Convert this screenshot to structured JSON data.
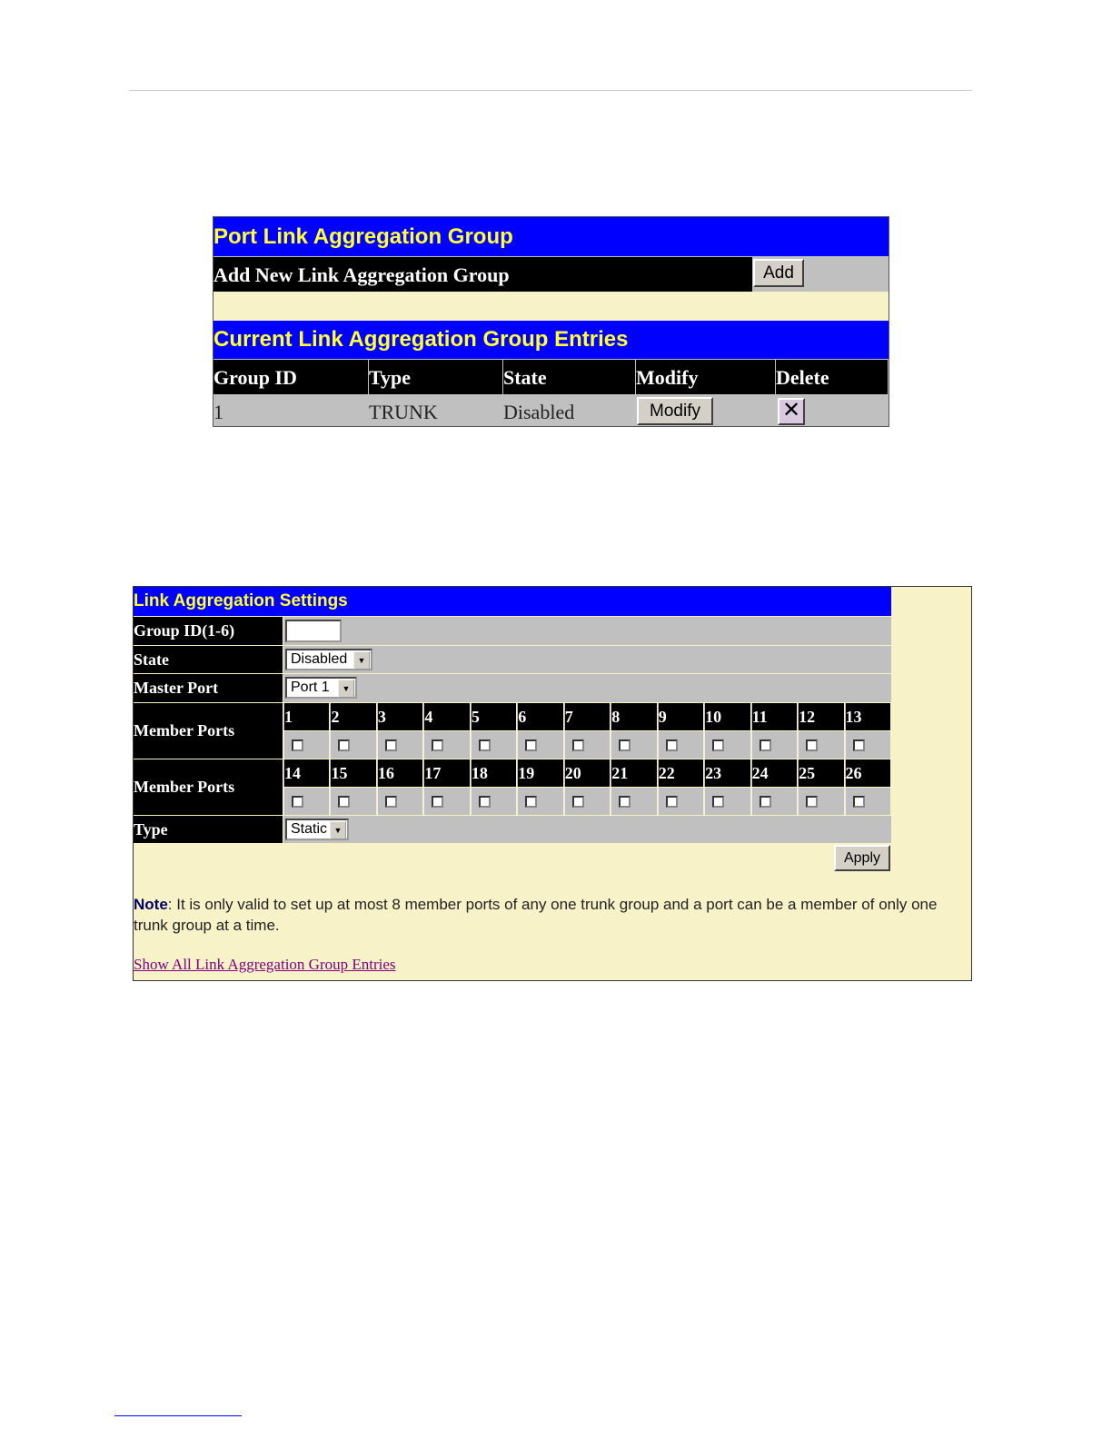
{
  "panel1": {
    "title": "Port Link Aggregation Group",
    "add_label": "Add New Link Aggregation Group",
    "add_button": "Add",
    "entries_title": "Current Link Aggregation Group Entries",
    "columns": [
      "Group ID",
      "Type",
      "State",
      "Modify",
      "Delete"
    ],
    "rows": [
      {
        "group_id": "1",
        "type": "TRUNK",
        "state": "Disabled",
        "modify_button": "Modify",
        "delete_icon": "x-icon"
      }
    ]
  },
  "panel2": {
    "title": "Link Aggregation Settings",
    "group_id_label": "Group ID(1-6)",
    "group_id_value": "",
    "state_label": "State",
    "state_value": "Disabled",
    "master_port_label": "Master Port",
    "master_port_value": "Port 1",
    "member_ports_label": "Member Ports",
    "ports_row1": [
      "1",
      "2",
      "3",
      "4",
      "5",
      "6",
      "7",
      "8",
      "9",
      "10",
      "11",
      "12",
      "13"
    ],
    "ports_row2": [
      "14",
      "15",
      "16",
      "17",
      "18",
      "19",
      "20",
      "21",
      "22",
      "23",
      "24",
      "25",
      "26"
    ],
    "type_label": "Type",
    "type_value": "Static",
    "apply_button": "Apply",
    "note_bold": "Note",
    "note_text": ": It is only valid to set up at most 8 member ports of any one trunk group and a port can be a member of only one trunk group at a time.",
    "link": "Show All Link Aggregation Group Entries"
  },
  "colors": {
    "title_bg": "#0000ff",
    "title_text": "#ffff33",
    "label_bg": "#000000",
    "cell_bg": "#c0c0c0",
    "background": "#f7f2c8"
  }
}
